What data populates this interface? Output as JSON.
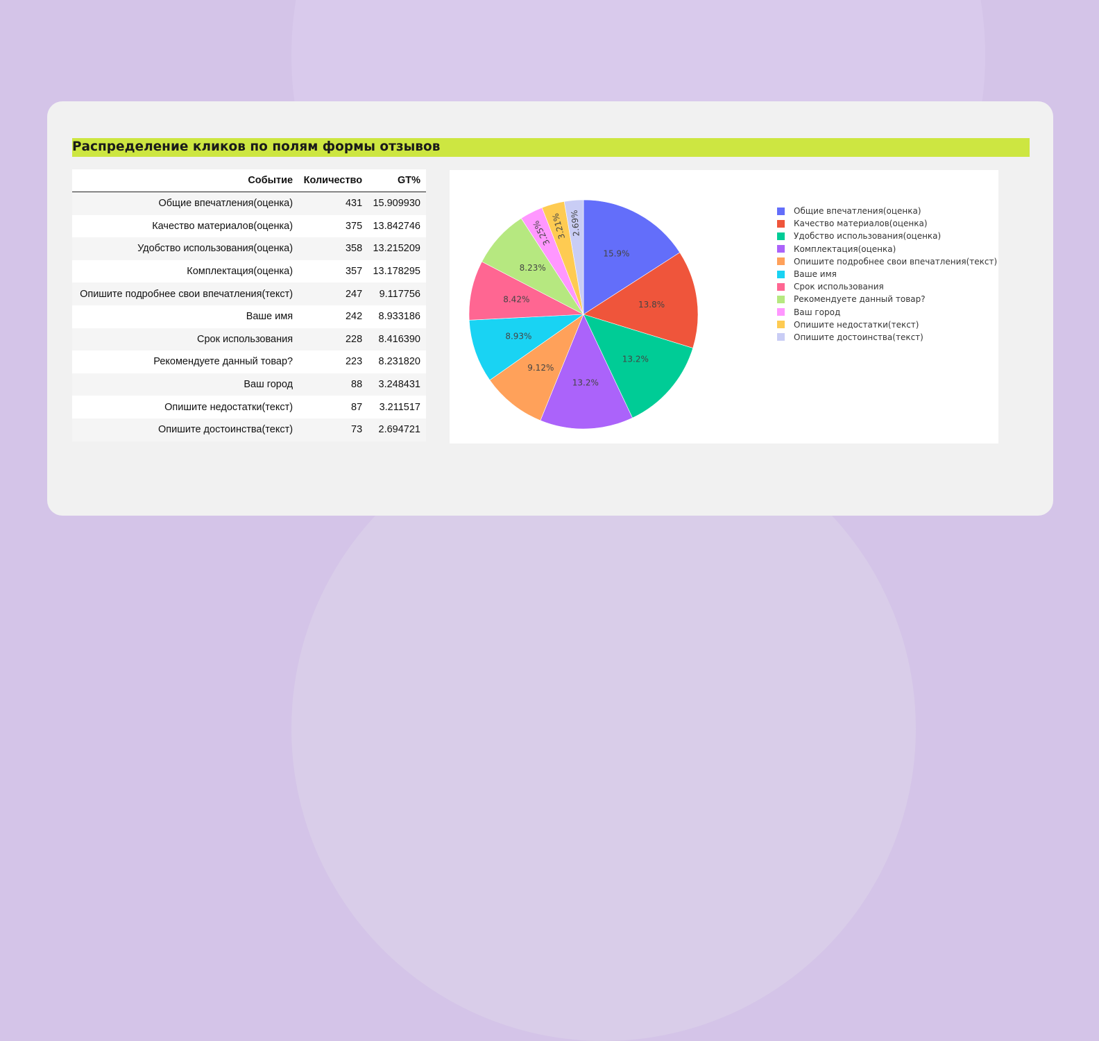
{
  "title": "Распределение кликов по полям формы отзывов",
  "table": {
    "columns": [
      "Событие",
      "Количество",
      "GT%"
    ],
    "rows": [
      {
        "event": "Общие впечатления(оценка)",
        "count": "431",
        "pct": "15.909930"
      },
      {
        "event": "Качество материалов(оценка)",
        "count": "375",
        "pct": "13.842746"
      },
      {
        "event": "Удобство использования(оценка)",
        "count": "358",
        "pct": "13.215209"
      },
      {
        "event": "Комплектация(оценка)",
        "count": "357",
        "pct": "13.178295"
      },
      {
        "event": "Опишите подробнее свои впечатления(текст)",
        "count": "247",
        "pct": "9.117756"
      },
      {
        "event": "Ваше имя",
        "count": "242",
        "pct": "8.933186"
      },
      {
        "event": "Срок использования",
        "count": "228",
        "pct": "8.416390"
      },
      {
        "event": "Рекомендуете данный товар?",
        "count": "223",
        "pct": "8.231820"
      },
      {
        "event": "Ваш город",
        "count": "88",
        "pct": "3.248431"
      },
      {
        "event": "Опишите недостатки(текст)",
        "count": "87",
        "pct": "3.211517"
      },
      {
        "event": "Опишите достоинства(текст)",
        "count": "73",
        "pct": "2.694721"
      }
    ]
  },
  "chart_data": {
    "type": "pie",
    "categories": [
      "Общие впечатления(оценка)",
      "Качество материалов(оценка)",
      "Удобство использования(оценка)",
      "Комплектация(оценка)",
      "Опишите подробнее свои впечатления(текст)",
      "Ваше имя",
      "Срок использования",
      "Рекомендуете данный товар?",
      "Ваш город",
      "Опишите недостатки(текст)",
      "Опишите достоинства(текст)"
    ],
    "values": [
      431,
      375,
      358,
      357,
      247,
      242,
      228,
      223,
      88,
      87,
      73
    ],
    "slice_labels": [
      "15.9%",
      "13.8%",
      "13.2%",
      "13.2%",
      "9.12%",
      "8.93%",
      "8.42%",
      "8.23%",
      "3.25%",
      "3.21%",
      "2.69%"
    ],
    "colors": [
      "#636efa",
      "#ef553b",
      "#00cc96",
      "#ab63fa",
      "#ffa15a",
      "#19d3f3",
      "#ff6692",
      "#b6e880",
      "#ff97ff",
      "#fecb52",
      "#c9cdf5"
    ],
    "direction": "clockwise",
    "legend_position": "right"
  }
}
